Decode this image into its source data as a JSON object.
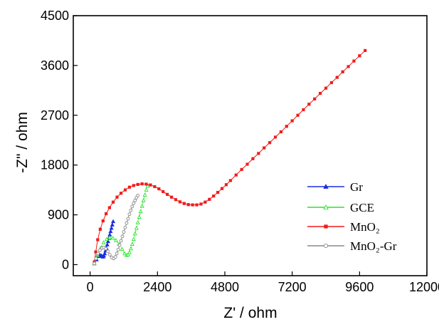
{
  "chart_data": {
    "type": "scatter",
    "xlabel": "Z' / ohm",
    "ylabel": "-Z\" / ohm",
    "xlim": [
      -600,
      12000
    ],
    "ylim": [
      -200,
      4500
    ],
    "xticks": [
      0,
      2400,
      4800,
      7200,
      9600,
      12000
    ],
    "xtick_labels": [
      "0",
      "2400",
      "4800",
      "7200",
      "9600",
      "12000"
    ],
    "yticks": [
      0,
      900,
      1800,
      2700,
      3600,
      4500
    ],
    "ytick_labels": [
      "0",
      "900",
      "1800",
      "2700",
      "3600",
      "4500"
    ],
    "grid": false,
    "legend_position": "right-middle",
    "series": [
      {
        "name": "Gr",
        "color": "#1a2fe0",
        "marker": "triangle-filled",
        "x": [
          150,
          230,
          300,
          350,
          390,
          430,
          460,
          490,
          520,
          550,
          580,
          610,
          640,
          670,
          700,
          730,
          760,
          790,
          820
        ],
        "y": [
          20,
          90,
          150,
          170,
          165,
          150,
          140,
          160,
          200,
          250,
          300,
          360,
          420,
          480,
          540,
          600,
          660,
          720,
          780
        ]
      },
      {
        "name": "GCE",
        "color": "#27e627",
        "marker": "triangle-open",
        "x": [
          150,
          260,
          370,
          480,
          590,
          700,
          810,
          920,
          1030,
          1140,
          1230,
          1300,
          1350,
          1400,
          1450,
          1500,
          1550,
          1600,
          1650,
          1700,
          1750,
          1800,
          1850,
          1900,
          1950,
          2000,
          2050
        ],
        "y": [
          20,
          170,
          300,
          400,
          460,
          490,
          480,
          440,
          370,
          280,
          200,
          170,
          180,
          220,
          290,
          370,
          460,
          560,
          660,
          760,
          860,
          960,
          1060,
          1160,
          1260,
          1350,
          1420
        ]
      },
      {
        "name": "MnO₂",
        "color": "#f01b1b",
        "marker": "square-filled",
        "x": [
          150,
          200,
          270,
          360,
          460,
          570,
          690,
          820,
          960,
          1100,
          1250,
          1400,
          1550,
          1700,
          1850,
          2000,
          2150,
          2300,
          2450,
          2600,
          2750,
          2900,
          3050,
          3200,
          3350,
          3500,
          3650,
          3800,
          3950,
          4100,
          4250,
          4400,
          4550,
          4700,
          4850,
          5000,
          5200,
          5400,
          5600,
          5800,
          6000,
          6200,
          6400,
          6600,
          6800,
          7000,
          7200,
          7400,
          7600,
          7800,
          8000,
          8200,
          8400,
          8600,
          8800,
          9000,
          9200,
          9400,
          9600,
          9800
        ],
        "y": [
          50,
          230,
          450,
          640,
          790,
          920,
          1030,
          1130,
          1220,
          1290,
          1350,
          1400,
          1430,
          1450,
          1460,
          1455,
          1440,
          1410,
          1370,
          1320,
          1270,
          1220,
          1175,
          1135,
          1105,
          1085,
          1080,
          1080,
          1095,
          1130,
          1180,
          1240,
          1305,
          1375,
          1445,
          1520,
          1620,
          1720,
          1815,
          1915,
          2010,
          2110,
          2205,
          2305,
          2400,
          2500,
          2600,
          2700,
          2800,
          2900,
          2995,
          3095,
          3190,
          3290,
          3385,
          3485,
          3580,
          3680,
          3775,
          3870
        ]
      },
      {
        "name": "MnO₂-Gr",
        "color": "#8a8a8a",
        "marker": "circle-open",
        "x": [
          150,
          210,
          280,
          350,
          420,
          490,
          560,
          630,
          700,
          770,
          840,
          900,
          950,
          1000,
          1050,
          1100,
          1150,
          1200,
          1250,
          1300,
          1350,
          1400,
          1450,
          1500,
          1550,
          1600,
          1650,
          1700
        ],
        "y": [
          20,
          110,
          200,
          260,
          300,
          310,
          290,
          240,
          180,
          130,
          110,
          140,
          200,
          270,
          350,
          430,
          510,
          590,
          670,
          750,
          830,
          910,
          980,
          1050,
          1110,
          1160,
          1210,
          1250
        ]
      }
    ]
  }
}
